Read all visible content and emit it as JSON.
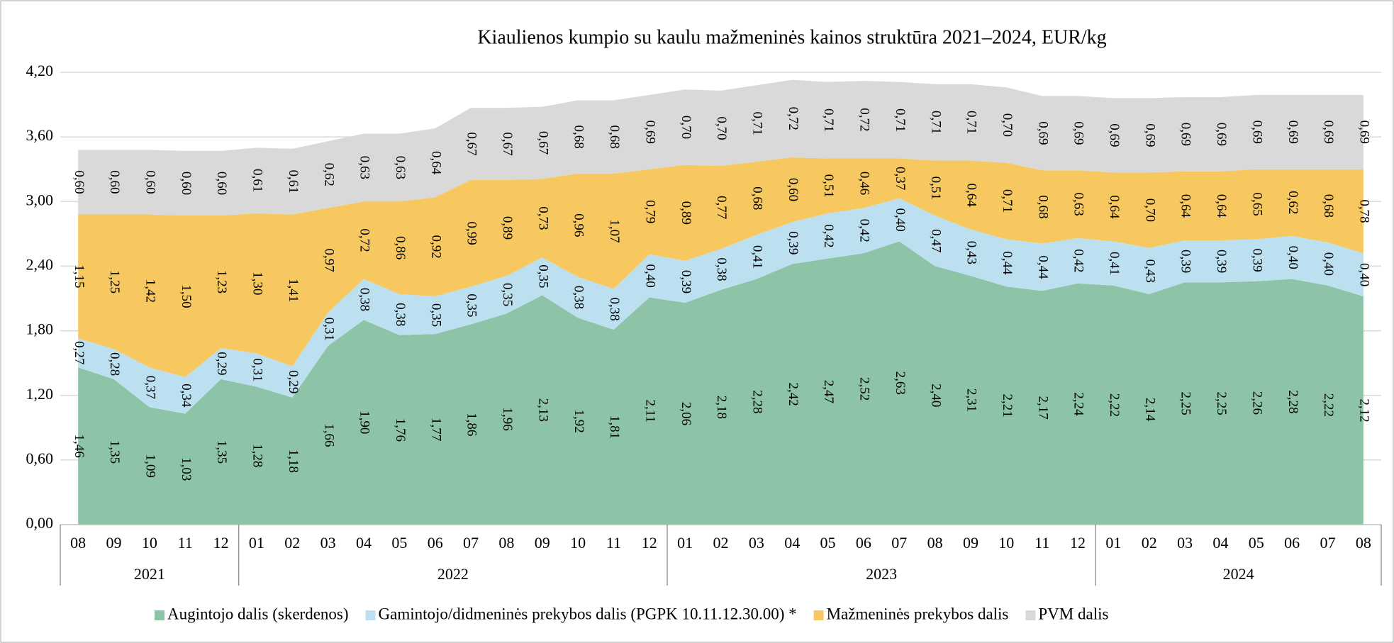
{
  "chart_data": {
    "type": "stacked_area",
    "title": "Kiaulienos kumpio su kaulu mažmeninės kainos struktūra 2021–2024, EUR/kg",
    "categories": [
      "08",
      "09",
      "10",
      "11",
      "12",
      "01",
      "02",
      "03",
      "04",
      "05",
      "06",
      "07",
      "08",
      "09",
      "10",
      "11",
      "12",
      "01",
      "02",
      "03",
      "04",
      "05",
      "06",
      "07",
      "08",
      "09",
      "10",
      "11",
      "12",
      "01",
      "02",
      "03",
      "04",
      "05",
      "06",
      "07",
      "08"
    ],
    "years": [
      "2021",
      "2022",
      "2023",
      "2024"
    ],
    "ylim": [
      0,
      4.2
    ],
    "yticks": [
      {
        "value": 0,
        "label": "0,00"
      },
      {
        "value": 0.6,
        "label": "0,60"
      },
      {
        "value": 1.2,
        "label": "1,20"
      },
      {
        "value": 1.8,
        "label": "1,80"
      },
      {
        "value": 2.4,
        "label": "2,40"
      },
      {
        "value": 3.0,
        "label": "3,00"
      },
      {
        "value": 3.6,
        "label": "3,60"
      },
      {
        "value": 4.2,
        "label": "4,20"
      }
    ],
    "grid": true,
    "legend": "bottom",
    "series": [
      {
        "name": "Augintojo dalis (skerdenos)",
        "color": "#8dc3a7",
        "values": [
          1.46,
          1.35,
          1.09,
          1.03,
          1.35,
          1.28,
          1.18,
          1.66,
          1.9,
          1.76,
          1.77,
          1.86,
          1.96,
          2.13,
          1.92,
          1.81,
          2.11,
          2.06,
          2.18,
          2.28,
          2.42,
          2.47,
          2.52,
          2.63,
          2.4,
          2.31,
          2.21,
          2.17,
          2.24,
          2.22,
          2.14,
          2.25,
          2.25,
          2.26,
          2.28,
          2.22,
          2.12
        ],
        "value_labels": [
          "1,46",
          "1,35",
          "1,09",
          "1,03",
          "1,35",
          "1,28",
          "1,18",
          "1,66",
          "1,90",
          "1,76",
          "1,77",
          "1,86",
          "1,96",
          "2,13",
          "1,92",
          "1,81",
          "2,11",
          "2,06",
          "2,18",
          "2,28",
          "2,42",
          "2,47",
          "2,52",
          "2,63",
          "2,40",
          "2,31",
          "2,21",
          "2,17",
          "2,24",
          "2,22",
          "2,14",
          "2,25",
          "2,25",
          "2,26",
          "2,28",
          "2,22",
          "2,12"
        ]
      },
      {
        "name": "Gamintojo/didmeninės prekybos dalis (PGPK 10.11.12.30.00) *",
        "color": "#bde0f0",
        "values": [
          0.27,
          0.28,
          0.37,
          0.34,
          0.29,
          0.31,
          0.29,
          0.31,
          0.38,
          0.38,
          0.35,
          0.35,
          0.35,
          0.35,
          0.38,
          0.38,
          0.4,
          0.39,
          0.38,
          0.41,
          0.39,
          0.42,
          0.42,
          0.4,
          0.47,
          0.43,
          0.44,
          0.44,
          0.42,
          0.41,
          0.43,
          0.39,
          0.39,
          0.39,
          0.4,
          0.4,
          0.4
        ],
        "value_labels": [
          "0,27",
          "0,28",
          "0,37",
          "0,34",
          "0,29",
          "0,31",
          "0,29",
          "0,31",
          "0,38",
          "0,38",
          "0,35",
          "0,35",
          "0,35",
          "0,35",
          "0,38",
          "0,38",
          "0,40",
          "0,39",
          "0,38",
          "0,41",
          "0,39",
          "0,42",
          "0,42",
          "0,40",
          "0,47",
          "0,43",
          "0,44",
          "0,44",
          "0,42",
          "0,41",
          "0,43",
          "0,39",
          "0,39",
          "0,39",
          "0,40",
          "0,40",
          "0,40"
        ]
      },
      {
        "name": "Mažmeninės prekybos dalis",
        "color": "#f6c85f",
        "values": [
          1.15,
          1.25,
          1.42,
          1.5,
          1.23,
          1.3,
          1.41,
          0.97,
          0.72,
          0.86,
          0.92,
          0.99,
          0.89,
          0.73,
          0.96,
          1.07,
          0.79,
          0.89,
          0.77,
          0.68,
          0.6,
          0.51,
          0.46,
          0.37,
          0.51,
          0.64,
          0.71,
          0.68,
          0.63,
          0.64,
          0.7,
          0.64,
          0.64,
          0.65,
          0.62,
          0.68,
          0.78
        ],
        "value_labels": [
          "1,15",
          "1,25",
          "1,42",
          "1,50",
          "1,23",
          "1,30",
          "1,41",
          "0,97",
          "0,72",
          "0,86",
          "0,92",
          "0,99",
          "0,89",
          "0,73",
          "0,96",
          "1,07",
          "0,79",
          "0,89",
          "0,77",
          "0,68",
          "0,60",
          "0,51",
          "0,46",
          "0,37",
          "0,51",
          "0,64",
          "0,71",
          "0,68",
          "0,63",
          "0,64",
          "0,70",
          "0,64",
          "0,64",
          "0,65",
          "0,62",
          "0,68",
          "0,78"
        ]
      },
      {
        "name": "PVM dalis",
        "color": "#d9d9d9",
        "values": [
          0.6,
          0.6,
          0.6,
          0.6,
          0.6,
          0.61,
          0.61,
          0.62,
          0.63,
          0.63,
          0.64,
          0.67,
          0.67,
          0.67,
          0.68,
          0.68,
          0.69,
          0.7,
          0.7,
          0.71,
          0.72,
          0.71,
          0.72,
          0.71,
          0.71,
          0.71,
          0.7,
          0.69,
          0.69,
          0.69,
          0.69,
          0.69,
          0.69,
          0.69,
          0.69,
          0.69,
          0.69
        ],
        "value_labels": [
          "0,60",
          "0,60",
          "0,60",
          "0,60",
          "0,60",
          "0,61",
          "0,61",
          "0,62",
          "0,63",
          "0,63",
          "0,64",
          "0,67",
          "0,67",
          "0,67",
          "0,68",
          "0,68",
          "0,69",
          "0,70",
          "0,70",
          "0,71",
          "0,72",
          "0,71",
          "0,72",
          "0,71",
          "0,71",
          "0,71",
          "0,70",
          "0,69",
          "0,69",
          "0,69",
          "0,69",
          "0,69",
          "0,69",
          "0,69",
          "0,69",
          "0,69",
          "0,69"
        ]
      }
    ]
  }
}
